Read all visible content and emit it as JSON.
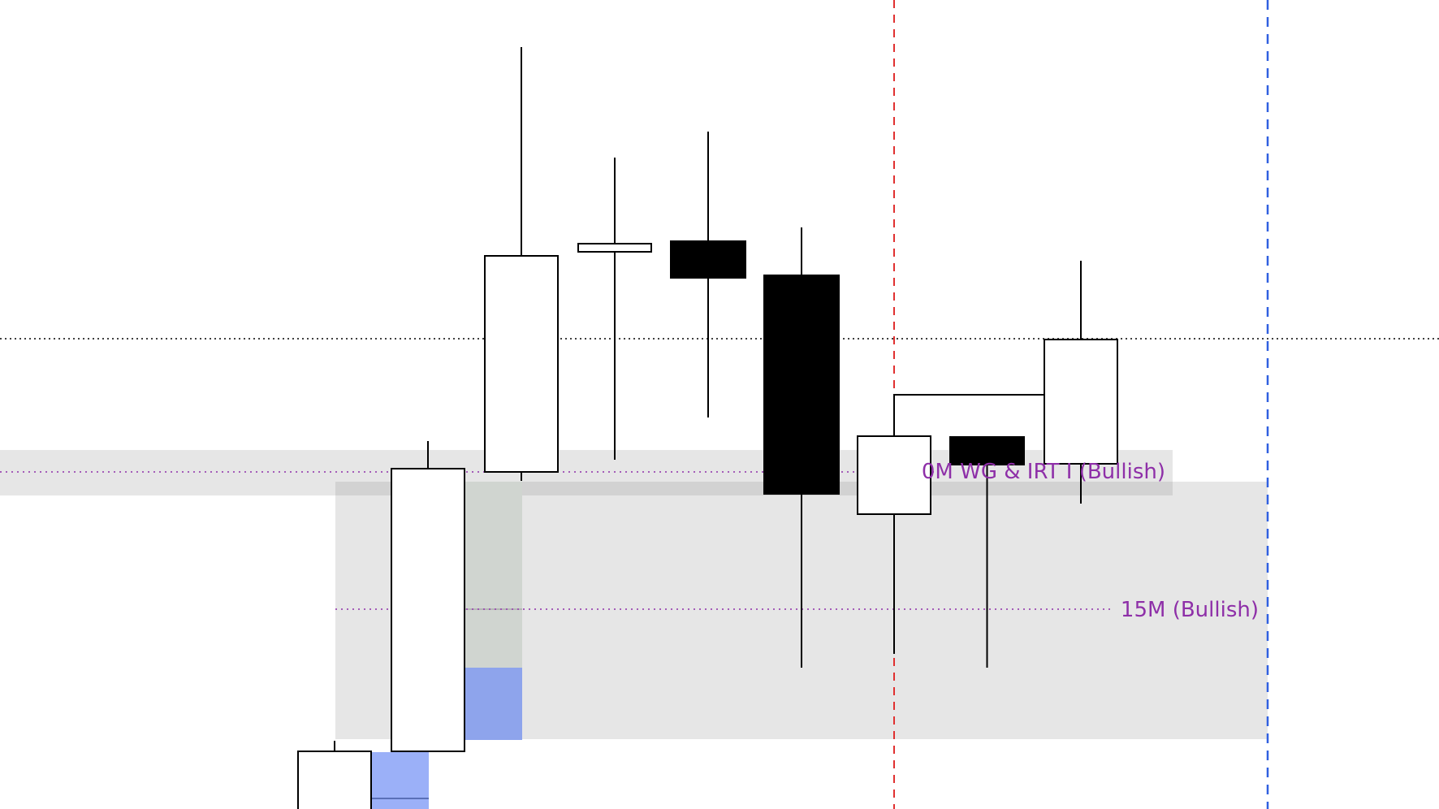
{
  "chart_data": {
    "type": "candlestick",
    "candles": [
      {
        "direction": "bullish"
      },
      {
        "direction": "bullish"
      },
      {
        "direction": "bullish"
      },
      {
        "direction": "bullish"
      },
      {
        "direction": "bearish"
      },
      {
        "direction": "bearish"
      },
      {
        "direction": "bullish"
      },
      {
        "direction": "bearish"
      },
      {
        "direction": "bullish"
      }
    ],
    "annotations": {
      "zone_upper_label": "0M WG & IRT I (Bullish)",
      "zone_lower_label": "15M (Bullish)"
    },
    "colors": {
      "label": "#8e2fa8",
      "zone": "#e6e6e6",
      "zone_overlap": "#d0d5d0",
      "fvg_blue": "#8ea4ec",
      "fvg_blue_light": "#9bb0f8",
      "vline_red": "#e03030",
      "vline_blue": "#3060e0",
      "bull_body": "#ffffff",
      "bear_body": "#000000"
    },
    "grid": false
  }
}
